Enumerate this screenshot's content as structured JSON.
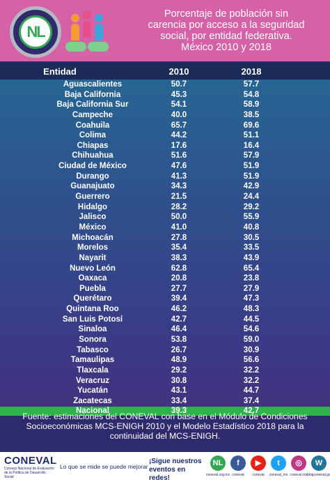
{
  "header": {
    "title_lines": [
      "Porcentaje de población sin",
      "carencia por acceso a la seguridad",
      "social, por entidad federativa.",
      "México 2010 y 2018"
    ],
    "logo_text": "NL"
  },
  "table": {
    "columns": [
      "Entidad",
      "2010",
      "2018"
    ],
    "rows": [
      {
        "entidad": "Aguascalientes",
        "v2010": "50.7",
        "v2018": "57.7"
      },
      {
        "entidad": "Baja California",
        "v2010": "45.3",
        "v2018": "54.8"
      },
      {
        "entidad": "Baja California Sur",
        "v2010": "54.1",
        "v2018": "58.9"
      },
      {
        "entidad": "Campeche",
        "v2010": "40.0",
        "v2018": "38.5"
      },
      {
        "entidad": "Coahuila",
        "v2010": "65.7",
        "v2018": "69.6"
      },
      {
        "entidad": "Colima",
        "v2010": "44.2",
        "v2018": "51.1"
      },
      {
        "entidad": "Chiapas",
        "v2010": "17.6",
        "v2018": "16.4"
      },
      {
        "entidad": "Chihuahua",
        "v2010": "51.6",
        "v2018": "57.9"
      },
      {
        "entidad": "Ciudad de México",
        "v2010": "47.6",
        "v2018": "51.9"
      },
      {
        "entidad": "Durango",
        "v2010": "41.3",
        "v2018": "51.9"
      },
      {
        "entidad": "Guanajuato",
        "v2010": "34.3",
        "v2018": "42.9"
      },
      {
        "entidad": "Guerrero",
        "v2010": "21.5",
        "v2018": "24.4"
      },
      {
        "entidad": "Hidalgo",
        "v2010": "28.2",
        "v2018": "29.2"
      },
      {
        "entidad": "Jalisco",
        "v2010": "50.0",
        "v2018": "55.9"
      },
      {
        "entidad": "México",
        "v2010": "41.0",
        "v2018": "40.8"
      },
      {
        "entidad": "Michoacán",
        "v2010": "27.8",
        "v2018": "30.5"
      },
      {
        "entidad": "Morelos",
        "v2010": "35.4",
        "v2018": "33.5"
      },
      {
        "entidad": "Nayarit",
        "v2010": "38.3",
        "v2018": "43.9"
      },
      {
        "entidad": "Nuevo León",
        "v2010": "62.8",
        "v2018": "65.4"
      },
      {
        "entidad": "Oaxaca",
        "v2010": "20.8",
        "v2018": "23.8"
      },
      {
        "entidad": "Puebla",
        "v2010": "27.7",
        "v2018": "27.9"
      },
      {
        "entidad": "Querétaro",
        "v2010": "39.4",
        "v2018": "47.3"
      },
      {
        "entidad": "Quintana Roo",
        "v2010": "46.2",
        "v2018": "48.3"
      },
      {
        "entidad": "San Luis Potosí",
        "v2010": "42.7",
        "v2018": "44.5"
      },
      {
        "entidad": "Sinaloa",
        "v2010": "46.4",
        "v2018": "54.6"
      },
      {
        "entidad": "Sonora",
        "v2010": "53.8",
        "v2018": "59.0"
      },
      {
        "entidad": "Tabasco",
        "v2010": "26.7",
        "v2018": "30.9"
      },
      {
        "entidad": "Tamaulipas",
        "v2010": "48.9",
        "v2018": "56.6"
      },
      {
        "entidad": "Tlaxcala",
        "v2010": "29.2",
        "v2018": "32.2"
      },
      {
        "entidad": "Veracruz",
        "v2010": "30.8",
        "v2018": "32.2"
      },
      {
        "entidad": "Yucatán",
        "v2010": "43.1",
        "v2018": "44.7"
      },
      {
        "entidad": "Zacatecas",
        "v2010": "33.4",
        "v2018": "37.4"
      }
    ],
    "nacional": {
      "entidad": "Nacional",
      "v2010": "39.3",
      "v2018": "42.7"
    }
  },
  "source": "Fuente: estimaciones del CONEVAL con base en el  Módulo de Condiciones Socioeconómicas MCS-ENIGH 2010 y el Modelo Estadístico 2018 para la continuidad del MCS-ENIGH.",
  "footer": {
    "brand": "CONEVAL",
    "brand_sub": "Consejo Nacional de Evaluación de la Política de Desarrollo Social",
    "tagline": "Lo que se mide se puede mejorar",
    "cta": "¡Sigue nuestros eventos en redes!",
    "socials": [
      {
        "icon": "nl-icon",
        "glyph": "NL",
        "color": "#34a853",
        "label": "coneval.org.mx"
      },
      {
        "icon": "facebook-icon",
        "glyph": "f",
        "color": "#3b5998",
        "label": "coneval"
      },
      {
        "icon": "youtube-icon",
        "glyph": "▶",
        "color": "#e62117",
        "label": "coneval"
      },
      {
        "icon": "twitter-icon",
        "glyph": "t",
        "color": "#1da1f2",
        "label": "coneval_mx"
      },
      {
        "icon": "instagram-icon",
        "glyph": "◎",
        "color": "#c13584",
        "label": "coneval.mx"
      },
      {
        "icon": "wordpress-icon",
        "glyph": "W",
        "color": "#21759b",
        "label": "blogconeval.gob.mx"
      }
    ]
  },
  "colors": {
    "header_bg": "#d562a6",
    "page_bg": "#2e2a6e",
    "table_header_bg": "#1c2a5a",
    "nacional_bg": "#2db34a"
  }
}
